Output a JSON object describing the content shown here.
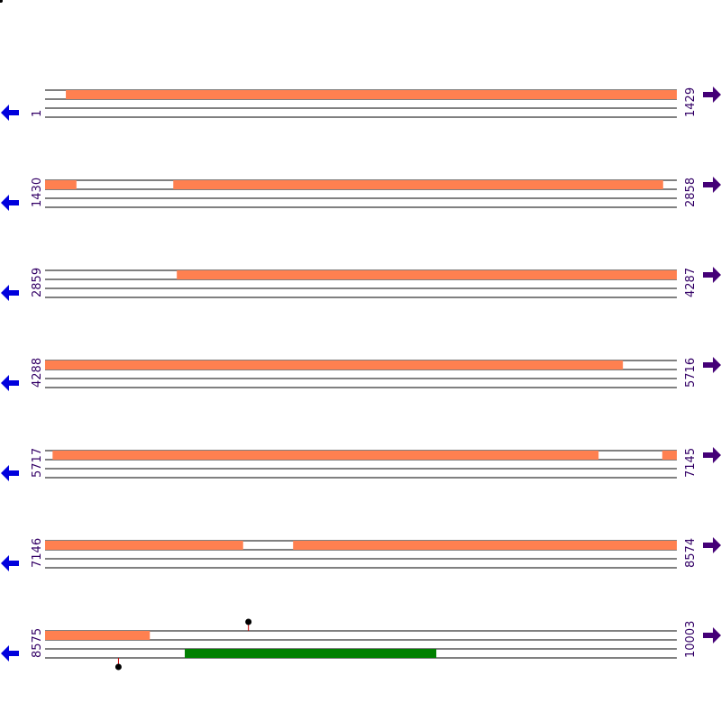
{
  "colors": {
    "feature": "#ff8050",
    "green_feature": "#008000",
    "rev_arrow": "#0000dd",
    "fwd_arrow": "#440077",
    "label": "#330066",
    "line": "#000000",
    "marker": "#000000",
    "marker_stem": "#cc0000"
  },
  "icons": {
    "reverse": "arrow-left-icon",
    "forward": "arrow-right-icon"
  },
  "rows": [
    {
      "start": "1",
      "end": "1429",
      "features": [
        {
          "from": 48,
          "to": 1429
        }
      ],
      "green": [],
      "markers": []
    },
    {
      "start": "1430",
      "end": "2858",
      "features": [
        {
          "from": 1430,
          "to": 1500
        },
        {
          "from": 1720,
          "to": 2827
        }
      ],
      "green": [],
      "markers": []
    },
    {
      "start": "2859",
      "end": "4287",
      "features": [
        {
          "from": 3157,
          "to": 4287
        }
      ],
      "green": [],
      "markers": []
    },
    {
      "start": "4288",
      "end": "5716",
      "features": [
        {
          "from": 4288,
          "to": 5594
        }
      ],
      "green": [],
      "markers": []
    },
    {
      "start": "5717",
      "end": "7145",
      "features": [
        {
          "from": 5734,
          "to": 6968
        },
        {
          "from": 7113,
          "to": 7145
        }
      ],
      "green": [],
      "markers": []
    },
    {
      "start": "7146",
      "end": "8574",
      "features": [
        {
          "from": 7146,
          "to": 7593
        },
        {
          "from": 7707,
          "to": 8574
        }
      ],
      "green": [],
      "markers": []
    },
    {
      "start": "8575",
      "end": "10003",
      "features": [
        {
          "from": 8575,
          "to": 8811
        }
      ],
      "green": [
        {
          "from": 8891,
          "to": 9459
        }
      ],
      "markers": [
        {
          "pos": 9035,
          "strand": "top"
        },
        {
          "pos": 8741,
          "strand": "bottom"
        }
      ]
    }
  ]
}
